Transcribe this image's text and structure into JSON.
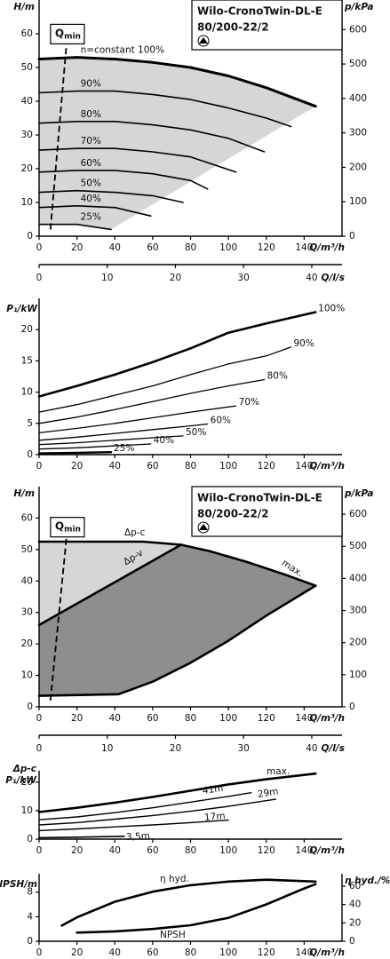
{
  "chart_data": [
    {
      "type": "line",
      "title": "Wilo-CronoTwin-DL-E",
      "subtitle": "80/200-22/2",
      "ylabel": "H/m",
      "y2label": "p/kPa",
      "xlabel": "Q/m³/h",
      "x2label": "Q/l/s",
      "xlim": [
        0,
        160
      ],
      "xticks": [
        0,
        20,
        40,
        60,
        80,
        100,
        120,
        140
      ],
      "x2lim": [
        0,
        44.44
      ],
      "x2ticks": [
        0,
        10,
        20,
        30,
        40
      ],
      "ylim": [
        0,
        70
      ],
      "yticks": [
        0,
        10,
        20,
        30,
        40,
        50,
        60
      ],
      "y2lim": [
        0,
        686
      ],
      "y2ticks": [
        0,
        100,
        200,
        300,
        400,
        500,
        600
      ],
      "qmin": {
        "label": "Q",
        "sub": "min",
        "x": [
          6,
          14.5
        ],
        "values": [
          2,
          57
        ]
      },
      "series": [
        {
          "name": "n=constant 100%",
          "color": "#000000",
          "x": [
            0,
            20,
            40,
            60,
            80,
            100,
            120,
            146
          ],
          "values": [
            52.5,
            53,
            52.5,
            51.5,
            50,
            47.5,
            44,
            38.5
          ]
        },
        {
          "name": "90%",
          "color": "#000000",
          "x": [
            0,
            20,
            40,
            60,
            80,
            100,
            120,
            133
          ],
          "values": [
            42.5,
            43,
            43,
            42,
            40.5,
            38,
            35,
            32.5
          ]
        },
        {
          "name": "80%",
          "color": "#000000",
          "x": [
            0,
            20,
            40,
            60,
            80,
            100,
            119
          ],
          "values": [
            33.5,
            34,
            34,
            33,
            31.5,
            29,
            25
          ]
        },
        {
          "name": "70%",
          "color": "#000000",
          "x": [
            0,
            20,
            40,
            60,
            80,
            104
          ],
          "values": [
            25.5,
            26,
            26,
            25,
            23.5,
            19
          ]
        },
        {
          "name": "60%",
          "color": "#000000",
          "x": [
            0,
            20,
            40,
            60,
            80,
            89
          ],
          "values": [
            19,
            19.5,
            19.5,
            18.5,
            16.5,
            14
          ]
        },
        {
          "name": "50%",
          "color": "#000000",
          "x": [
            0,
            20,
            40,
            60,
            76
          ],
          "values": [
            13,
            13.5,
            13,
            12,
            10
          ]
        },
        {
          "name": "40%",
          "color": "#000000",
          "x": [
            0,
            20,
            40,
            59
          ],
          "values": [
            8.5,
            9,
            8.5,
            6
          ]
        },
        {
          "name": "25%",
          "color": "#000000",
          "x": [
            0,
            20,
            38
          ],
          "values": [
            3.5,
            3.5,
            2
          ]
        }
      ]
    },
    {
      "type": "line",
      "ylabel": "P₁/kW",
      "xlabel": "Q/m³/h",
      "xlim": [
        0,
        160
      ],
      "xticks": [
        0,
        20,
        40,
        60,
        80,
        100,
        120,
        140
      ],
      "ylim": [
        0,
        25
      ],
      "yticks": [
        0,
        5,
        10,
        15,
        20
      ],
      "series": [
        {
          "name": "100%",
          "color": "#000000",
          "x": [
            0,
            20,
            40,
            60,
            80,
            100,
            120,
            146
          ],
          "values": [
            9.3,
            11,
            12.8,
            14.8,
            17,
            19.5,
            21,
            22.8
          ]
        },
        {
          "name": "90%",
          "color": "#000000",
          "x": [
            0,
            20,
            40,
            60,
            80,
            100,
            120,
            133
          ],
          "values": [
            6.8,
            8,
            9.5,
            11,
            12.8,
            14.5,
            15.8,
            17.2
          ]
        },
        {
          "name": "80%",
          "color": "#000000",
          "x": [
            0,
            20,
            40,
            60,
            80,
            100,
            119
          ],
          "values": [
            5,
            6,
            7.2,
            8.5,
            9.8,
            11,
            12
          ]
        },
        {
          "name": "70%",
          "color": "#000000",
          "x": [
            0,
            20,
            40,
            60,
            80,
            104
          ],
          "values": [
            3.5,
            4.2,
            5,
            5.9,
            6.8,
            7.8
          ]
        },
        {
          "name": "60%",
          "color": "#000000",
          "x": [
            0,
            20,
            40,
            60,
            80,
            89
          ],
          "values": [
            2.3,
            2.8,
            3.4,
            4,
            4.6,
            4.9
          ]
        },
        {
          "name": "50%",
          "color": "#000000",
          "x": [
            0,
            20,
            40,
            60,
            76
          ],
          "values": [
            1.6,
            1.9,
            2.3,
            2.7,
            3
          ]
        },
        {
          "name": "40%",
          "color": "#000000",
          "x": [
            0,
            20,
            40,
            59
          ],
          "values": [
            0.9,
            1.1,
            1.4,
            1.7
          ]
        },
        {
          "name": "25%",
          "color": "#000000",
          "x": [
            0,
            20,
            38
          ],
          "values": [
            0.2,
            0.3,
            0.4
          ]
        }
      ]
    },
    {
      "type": "line",
      "title": "Wilo-CronoTwin-DL-E",
      "subtitle": "80/200-22/2",
      "ylabel": "H/m",
      "y2label": "p/kPa",
      "xlabel": "Q/m³/h",
      "x2label": "Q/l/s",
      "xlim": [
        0,
        160
      ],
      "xticks": [
        0,
        20,
        40,
        60,
        80,
        100,
        120,
        140
      ],
      "x2lim": [
        0,
        44.44
      ],
      "x2ticks": [
        0,
        10,
        20,
        30,
        40
      ],
      "ylim": [
        0,
        70
      ],
      "yticks": [
        0,
        10,
        20,
        30,
        40,
        50,
        60
      ],
      "y2lim": [
        0,
        686
      ],
      "y2ticks": [
        0,
        100,
        200,
        300,
        400,
        500,
        600
      ],
      "qmin": {
        "label": "Q",
        "sub": "min",
        "x": [
          6,
          14.5
        ],
        "values": [
          2,
          54
        ]
      },
      "series": [
        {
          "name": "Δp-c",
          "color": "#000000",
          "x": [
            0,
            55,
            75
          ],
          "values": [
            52.5,
            52.5,
            51.5
          ]
        },
        {
          "name": "Δp-v",
          "color": "#000000",
          "x": [
            0,
            75
          ],
          "values": [
            26,
            51.5
          ]
        },
        {
          "name": "max.",
          "color": "#000000",
          "x": [
            75,
            90,
            110,
            130,
            146
          ],
          "values": [
            51.5,
            49.5,
            46,
            42,
            38.5
          ]
        },
        {
          "color": "#000000",
          "x": [
            0,
            42,
            60,
            80,
            100,
            120,
            146
          ],
          "values": [
            3.5,
            4,
            8,
            14,
            21,
            29,
            38.5
          ]
        }
      ]
    },
    {
      "type": "line",
      "title": "Δp-c",
      "ylabel": "P₁/kW",
      "xlabel": "Q/m³/h",
      "xlim": [
        0,
        160
      ],
      "xticks": [
        0,
        20,
        40,
        60,
        80,
        100,
        120,
        140
      ],
      "ylim": [
        0,
        24
      ],
      "yticks": [
        0,
        10,
        20
      ],
      "series": [
        {
          "name": "max.",
          "color": "#000000",
          "x": [
            0,
            20,
            40,
            60,
            80,
            100,
            120,
            146
          ],
          "values": [
            9.5,
            11,
            12.8,
            14.8,
            17,
            19.2,
            21,
            23
          ]
        },
        {
          "name": "41m",
          "color": "#000000",
          "x": [
            0,
            20,
            40,
            60,
            80,
            100,
            112
          ],
          "values": [
            6.8,
            7.8,
            9.3,
            11,
            13,
            15,
            16.3
          ]
        },
        {
          "name": "29m",
          "color": "#000000",
          "x": [
            0,
            20,
            40,
            60,
            80,
            100,
            125
          ],
          "values": [
            5,
            5.8,
            7,
            8.3,
            9.8,
            11.5,
            14
          ]
        },
        {
          "name": "17m",
          "color": "#000000",
          "x": [
            0,
            20,
            40,
            60,
            80,
            100
          ],
          "values": [
            3,
            3.6,
            4.3,
            5,
            5.8,
            6.7
          ]
        },
        {
          "name": "3,5m",
          "color": "#000000",
          "x": [
            0,
            20,
            45
          ],
          "values": [
            0.5,
            0.7,
            1
          ]
        }
      ]
    },
    {
      "type": "line",
      "ylabel": "NPSH/m",
      "y2label": "η hyd./%",
      "xlabel": "Q/m³/h",
      "xlim": [
        0,
        160
      ],
      "xticks": [
        0,
        20,
        40,
        60,
        80,
        100,
        120,
        140
      ],
      "ylim": [
        0,
        11
      ],
      "yticks": [
        0,
        4,
        8
      ],
      "y2lim": [
        0,
        73.5
      ],
      "y2ticks": [
        0,
        20,
        40,
        60
      ],
      "series": [
        {
          "name": "η hyd.",
          "color": "#000000",
          "axis": "y2",
          "x": [
            12,
            20,
            40,
            60,
            80,
            100,
            120,
            146
          ],
          "values": [
            17,
            26,
            43,
            54,
            61,
            65,
            67,
            65
          ]
        },
        {
          "name": "NPSH",
          "color": "#000000",
          "x": [
            20,
            40,
            60,
            80,
            100,
            120,
            140,
            146
          ],
          "values": [
            1.4,
            1.6,
            2,
            2.6,
            3.8,
            6,
            8.6,
            9.3
          ]
        }
      ]
    }
  ]
}
